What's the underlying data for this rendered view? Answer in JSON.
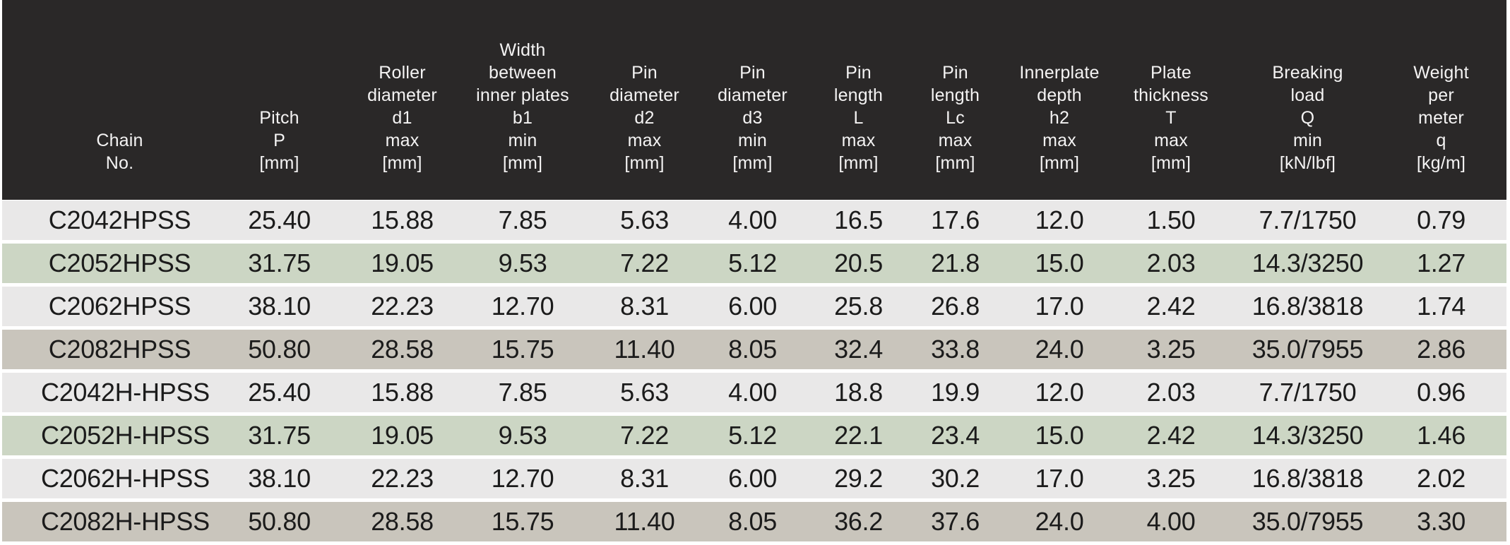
{
  "title": "Chain specification table",
  "colors": {
    "header_bg": "#2a2828",
    "header_text": "#f4f3f3",
    "row_gray": "#e9e8e8",
    "row_green": "#ccd6c4",
    "row_tan": "#c9c5bc",
    "body_text": "#1b1b1b",
    "page_bg": "#ffffff"
  },
  "table": {
    "columns": [
      {
        "id": "chain-no",
        "header_lines": [
          "Chain",
          "No."
        ]
      },
      {
        "id": "pitch",
        "header_lines": [
          "Pitch",
          "P",
          "[mm]"
        ]
      },
      {
        "id": "roller-diameter-d1",
        "header_lines": [
          "Roller",
          "diameter",
          "d1",
          "max",
          "[mm]"
        ]
      },
      {
        "id": "width-between-inner-plates-b1",
        "header_lines": [
          "Width",
          "between",
          "inner plates",
          "b1",
          "min",
          "[mm]"
        ]
      },
      {
        "id": "pin-diameter-d2",
        "header_lines": [
          "Pin",
          "diameter",
          "d2",
          "max",
          "[mm]"
        ]
      },
      {
        "id": "pin-diameter-d3",
        "header_lines": [
          "Pin",
          "diameter",
          "d3",
          "min",
          "[mm]"
        ]
      },
      {
        "id": "pin-length-l",
        "header_lines": [
          "Pin",
          "length",
          "L",
          "max",
          "[mm]"
        ]
      },
      {
        "id": "pin-length-lc",
        "header_lines": [
          "Pin",
          "length",
          "Lc",
          "max",
          "[mm]"
        ]
      },
      {
        "id": "innerplate-depth-h2",
        "header_lines": [
          "Innerplate",
          "depth",
          "h2",
          "max",
          "[mm]"
        ]
      },
      {
        "id": "plate-thickness-t",
        "header_lines": [
          "Plate",
          "thickness",
          "T",
          "max",
          "[mm]"
        ]
      },
      {
        "id": "breaking-load-q",
        "header_lines": [
          "Breaking",
          "load",
          "Q",
          "min",
          "[kN/lbf]"
        ]
      },
      {
        "id": "weight-per-meter-q",
        "header_lines": [
          "Weight",
          "per",
          "meter",
          "q",
          "[kg/m]"
        ]
      }
    ],
    "rows": [
      {
        "tone": "gray",
        "cells": [
          "C2042HPSS",
          "25.40",
          "15.88",
          "7.85",
          "5.63",
          "4.00",
          "16.5",
          "17.6",
          "12.0",
          "1.50",
          "7.7/1750",
          "0.79"
        ]
      },
      {
        "tone": "green",
        "cells": [
          "C2052HPSS",
          "31.75",
          "19.05",
          "9.53",
          "7.22",
          "5.12",
          "20.5",
          "21.8",
          "15.0",
          "2.03",
          "14.3/3250",
          "1.27"
        ]
      },
      {
        "tone": "gray",
        "cells": [
          "C2062HPSS",
          "38.10",
          "22.23",
          "12.70",
          "8.31",
          "6.00",
          "25.8",
          "26.8",
          "17.0",
          "2.42",
          "16.8/3818",
          "1.74"
        ]
      },
      {
        "tone": "tan",
        "cells": [
          "C2082HPSS",
          "50.80",
          "28.58",
          "15.75",
          "11.40",
          "8.05",
          "32.4",
          "33.8",
          "24.0",
          "3.25",
          "35.0/7955",
          "2.86"
        ]
      },
      {
        "tone": "gray",
        "cells": [
          "C2042H-HPSS",
          "25.40",
          "15.88",
          "7.85",
          "5.63",
          "4.00",
          "18.8",
          "19.9",
          "12.0",
          "2.03",
          "7.7/1750",
          "0.96"
        ]
      },
      {
        "tone": "green",
        "cells": [
          "C2052H-HPSS",
          "31.75",
          "19.05",
          "9.53",
          "7.22",
          "5.12",
          "22.1",
          "23.4",
          "15.0",
          "2.42",
          "14.3/3250",
          "1.46"
        ]
      },
      {
        "tone": "gray",
        "cells": [
          "C2062H-HPSS",
          "38.10",
          "22.23",
          "12.70",
          "8.31",
          "6.00",
          "29.2",
          "30.2",
          "17.0",
          "3.25",
          "16.8/3818",
          "2.02"
        ]
      },
      {
        "tone": "tan",
        "cells": [
          "C2082H-HPSS",
          "50.80",
          "28.58",
          "15.75",
          "11.40",
          "8.05",
          "36.2",
          "37.6",
          "24.0",
          "4.00",
          "35.0/7955",
          "3.30"
        ]
      }
    ]
  },
  "chart_data": {
    "type": "table",
    "title": "",
    "column_headers": [
      "Chain No.",
      "Pitch P [mm]",
      "Roller diameter d1 max [mm]",
      "Width between inner plates b1 min [mm]",
      "Pin diameter d2 max [mm]",
      "Pin diameter d3 min [mm]",
      "Pin length L max [mm]",
      "Pin length Lc max [mm]",
      "Innerplate depth h2 max [mm]",
      "Plate thickness T max [mm]",
      "Breaking load Q min [kN/lbf]",
      "Weight per meter q [kg/m]"
    ],
    "rows": [
      [
        "C2042HPSS",
        25.4,
        15.88,
        7.85,
        5.63,
        4.0,
        16.5,
        17.6,
        12.0,
        1.5,
        "7.7/1750",
        0.79
      ],
      [
        "C2052HPSS",
        31.75,
        19.05,
        9.53,
        7.22,
        5.12,
        20.5,
        21.8,
        15.0,
        2.03,
        "14.3/3250",
        1.27
      ],
      [
        "C2062HPSS",
        38.1,
        22.23,
        12.7,
        8.31,
        6.0,
        25.8,
        26.8,
        17.0,
        2.42,
        "16.8/3818",
        1.74
      ],
      [
        "C2082HPSS",
        50.8,
        28.58,
        15.75,
        11.4,
        8.05,
        32.4,
        33.8,
        24.0,
        3.25,
        "35.0/7955",
        2.86
      ],
      [
        "C2042H-HPSS",
        25.4,
        15.88,
        7.85,
        5.63,
        4.0,
        18.8,
        19.9,
        12.0,
        2.03,
        "7.7/1750",
        0.96
      ],
      [
        "C2052H-HPSS",
        31.75,
        19.05,
        9.53,
        7.22,
        5.12,
        22.1,
        23.4,
        15.0,
        2.42,
        "14.3/3250",
        1.46
      ],
      [
        "C2062H-HPSS",
        38.1,
        22.23,
        12.7,
        8.31,
        6.0,
        29.2,
        30.2,
        17.0,
        3.25,
        "16.8/3818",
        2.02
      ],
      [
        "C2082H-HPSS",
        50.8,
        28.58,
        15.75,
        11.4,
        8.05,
        36.2,
        37.6,
        24.0,
        4.0,
        "35.0/7955",
        3.3
      ]
    ]
  }
}
